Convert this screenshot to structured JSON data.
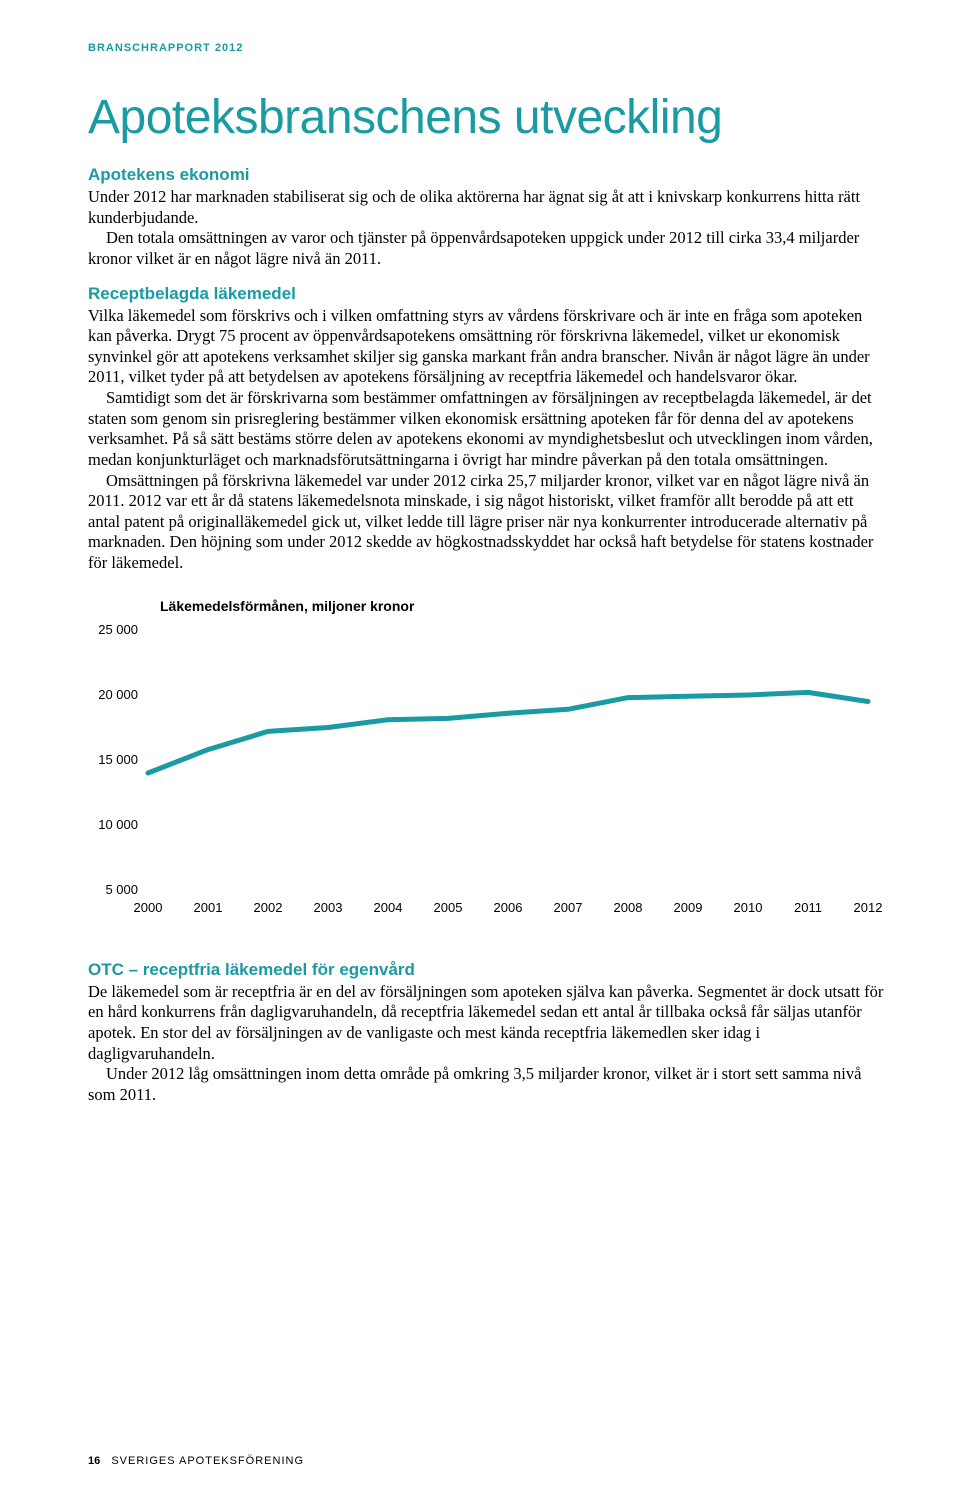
{
  "header": {
    "tag": "BRANSCHRAPPORT 2012"
  },
  "title": "Apoteksbranschens utveckling",
  "section1": {
    "heading": "Apotekens ekonomi",
    "paragraphs": [
      "Under 2012 har marknaden stabiliserat sig och de olika aktörerna har ägnat sig åt att i knivskarp konkurrens hitta rätt kunderbjudande.",
      "Den totala omsättningen av varor och tjänster på öppenvårdsapoteken uppgick under 2012 till cirka 33,4 miljarder kronor vilket är en något lägre nivå än 2011."
    ]
  },
  "section2": {
    "heading": "Receptbelagda läkemedel",
    "p1a": "Vilka läkemedel som förskrivs och i vilken omfattning styrs av vårdens förskrivare och är inte en fråga som apoteken kan påverka. Drygt 75 procent av öppenvårdsapotekens omsättning rör förskrivna läkemedel, vilket ur ekonomisk synvinkel gör att apotekens verksamhet skiljer sig ganska markant från andra branscher. Nivån är något lägre än under 2011, vilket tyder på att betydelsen av apotekens försäljning av receptfria läkemedel och handelsvaror ökar.",
    "p1b": "Samtidigt som det är förskrivarna som bestämmer omfattningen av försäljningen av receptbelagda läkemedel, är det staten som genom sin prisreglering bestämmer vilken ekonomisk ersättning apoteken får för denna del av apotekens verksamhet. På så sätt bestäms större delen av apotekens ekonomi av myndighetsbeslut och utvecklingen inom vården, medan konjunkturläget och marknadsförutsättningarna i övrigt har mindre påverkan på den totala omsättningen.",
    "p1c": "Omsättningen på förskrivna läkemedel var under 2012 cirka 25,7 miljarder kronor, vilket var en något lägre nivå än 2011. 2012 var ett år då statens läkemedelsnota minskade, i sig något historiskt, vilket framför allt berodde på att ett antal patent på originalläkemedel gick ut, vilket ledde till lägre priser när nya konkurrenter introducerade alternativ på marknaden. Den höjning som under 2012 skedde av högkostnadsskyddet har också haft betydelse för statens kostnader för läkemedel."
  },
  "chart": {
    "type": "line",
    "title": "Läkemedelsförmånen, miljoner kronor",
    "title_fontsize": 14,
    "background_color": "#ffffff",
    "line_color": "#1a9ba3",
    "line_width": 5,
    "axis_color": "#000000",
    "axis_fontsize": 13,
    "y_ticks": [
      5000,
      10000,
      15000,
      20000,
      25000
    ],
    "y_tick_labels": [
      "5 000",
      "10 000",
      "15 000",
      "20 000",
      "25 000"
    ],
    "ylim": [
      5000,
      25000
    ],
    "x_labels": [
      "2000",
      "2001",
      "2002",
      "2003",
      "2004",
      "2005",
      "2006",
      "2007",
      "2008",
      "2009",
      "2010",
      "2011",
      "2012"
    ],
    "values": [
      14000,
      15800,
      17200,
      17500,
      18100,
      18200,
      18600,
      18900,
      19800,
      19900,
      20000,
      20200,
      19500
    ]
  },
  "section3": {
    "heading": "OTC – receptfria läkemedel för egenvård",
    "p1": "De läkemedel som är receptfria är en del av försäljningen som apoteken själva kan påverka. Segmentet är dock utsatt för en hård konkurrens från dagligvaruhandeln, då receptfria läkemedel sedan ett antal år tillbaka också får säljas utanför apotek. En stor del av försäljningen av de vanligaste och mest kända receptfria läkemedlen sker idag i dagligvaruhandeln.",
    "p2": "Under 2012 låg omsättningen inom detta område på omkring 3,5 miljarder kronor, vilket är i stort sett samma nivå som 2011."
  },
  "footer": {
    "page": "16",
    "publication": "SVERIGES APOTEKSFÖRENING"
  }
}
